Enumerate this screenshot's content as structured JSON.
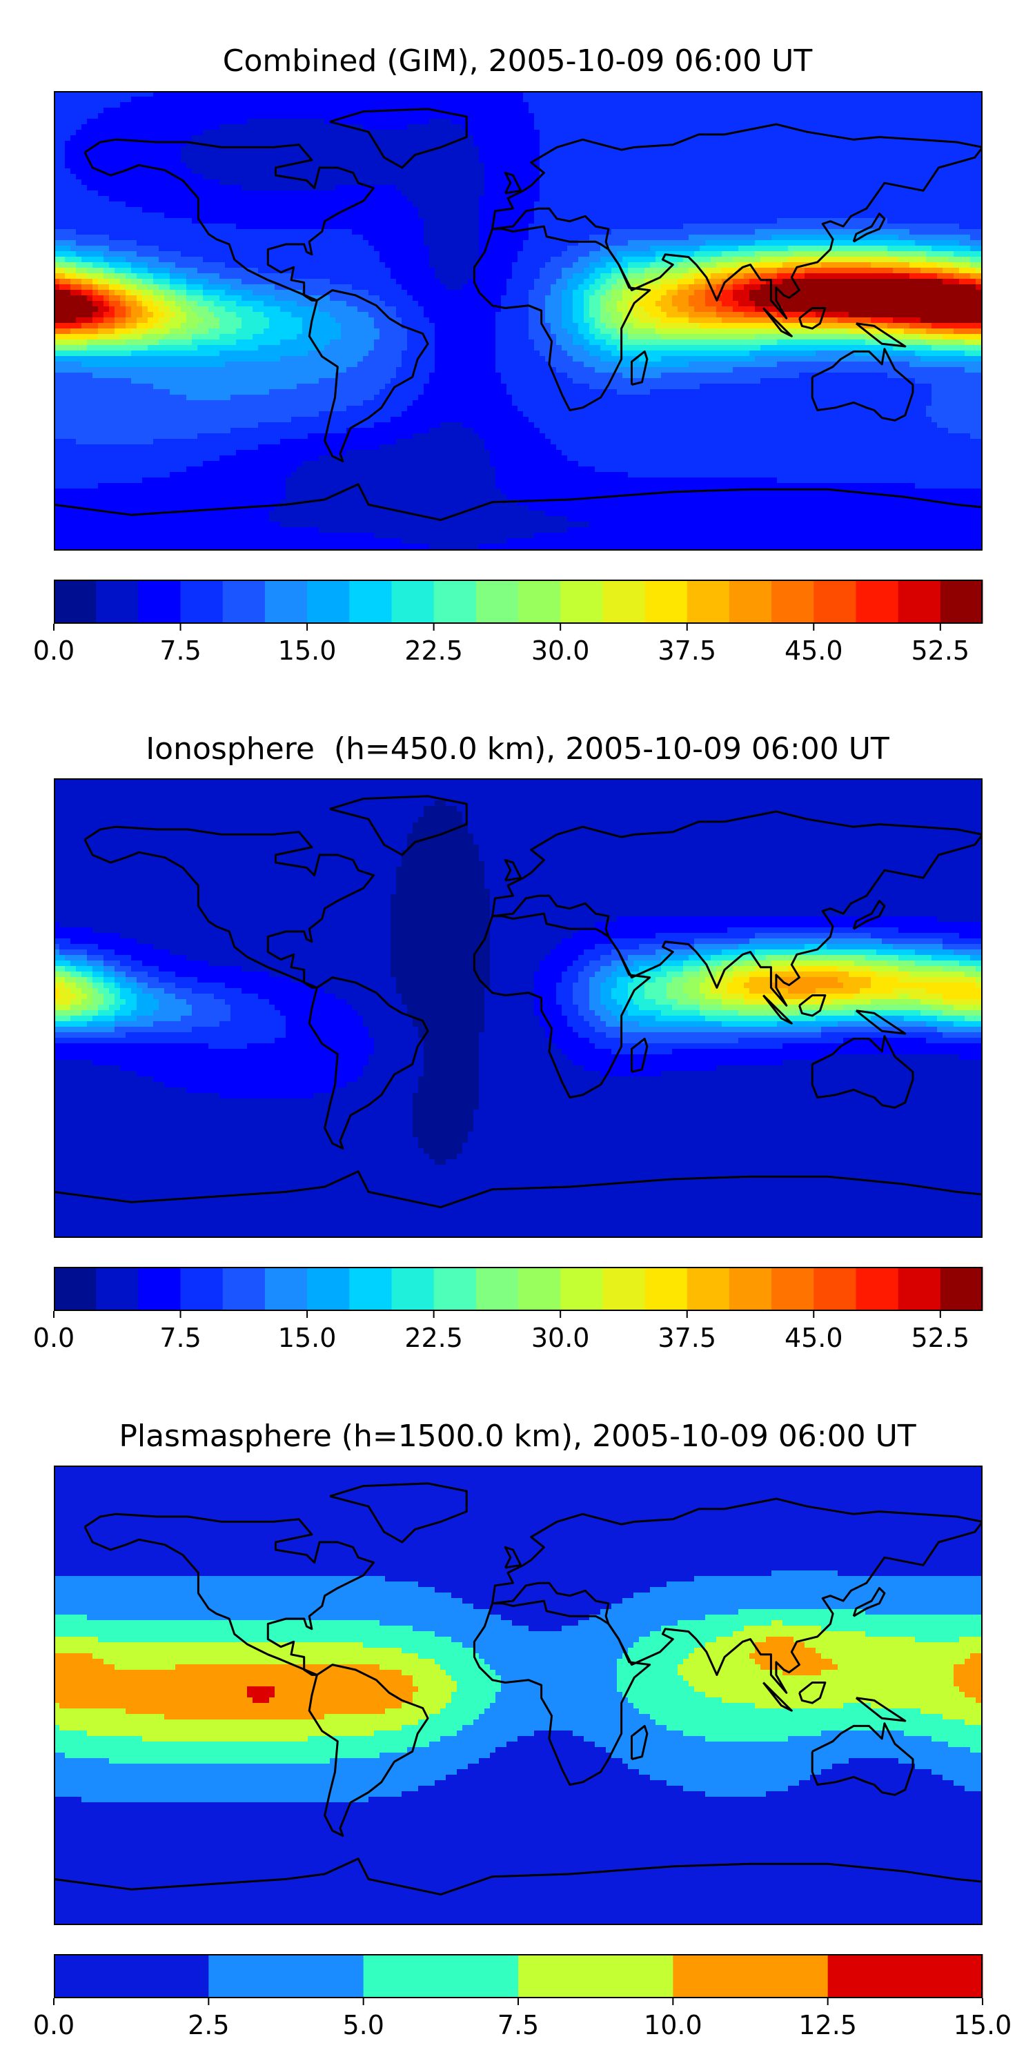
{
  "chart_data": [
    {
      "type": "heatmap",
      "title": "Combined (GIM), 2005-10-09 06:00 UT",
      "colorbar": {
        "levels": [
          0.0,
          2.5,
          5.0,
          7.5,
          10.0,
          12.5,
          15.0,
          17.5,
          20.0,
          22.5,
          25.0,
          27.5,
          30.0,
          32.5,
          35.0,
          37.5,
          40.0,
          42.5,
          45.0,
          47.5,
          50.0,
          52.5,
          55.0
        ],
        "ticks": [
          "0.0",
          "7.5",
          "15.0",
          "22.5",
          "30.0",
          "37.5",
          "45.0",
          "52.5"
        ],
        "colors": [
          "#000e91",
          "#0012c8",
          "#0000ff",
          "#0a30ff",
          "#1a55ff",
          "#1a8cff",
          "#00aaff",
          "#00d2ff",
          "#1ff0dc",
          "#4dffb8",
          "#80ff80",
          "#99ff5c",
          "#c3ff33",
          "#e6f21a",
          "#ffe600",
          "#ffbb00",
          "#ff9900",
          "#ff7300",
          "#ff4d00",
          "#ff1a00",
          "#d90000",
          "#910000"
        ]
      },
      "field": {
        "background": 8,
        "blobs": [
          {
            "lon": 125,
            "lat": 12,
            "slon": 42,
            "slat": 11,
            "amp": 45
          },
          {
            "lon": 120,
            "lat": 5,
            "slon": 22,
            "slat": 6,
            "amp": 4
          },
          {
            "lon": 70,
            "lat": 3,
            "slon": 28,
            "slat": 13,
            "amp": 18
          },
          {
            "lon": 40,
            "lat": 3,
            "slon": 16,
            "slat": 16,
            "amp": 8
          },
          {
            "lon": -180,
            "lat": 5,
            "slon": 30,
            "slat": 10,
            "amp": 30
          },
          {
            "lon": -140,
            "lat": 0,
            "slon": 45,
            "slat": 9,
            "amp": 12
          },
          {
            "lon": -95,
            "lat": -12,
            "slon": 55,
            "slat": 16,
            "amp": 5
          },
          {
            "lon": -140,
            "lat": -38,
            "slon": 60,
            "slat": 12,
            "amp": 3
          },
          {
            "lon": -25,
            "lat": 10,
            "slon": 16,
            "slat": 60,
            "amp": -4
          },
          {
            "lon": -90,
            "lat": 65,
            "slon": 40,
            "slat": 14,
            "amp": -5
          },
          {
            "lon": -65,
            "lat": -55,
            "slon": 40,
            "slat": 12,
            "amp": -4
          },
          {
            "lon": 0,
            "lat": -80,
            "slon": 180,
            "slat": 10,
            "amp": -3
          }
        ]
      }
    },
    {
      "type": "heatmap",
      "title": "Ionosphere  (h=450.0 km), 2005-10-09 06:00 UT",
      "colorbar": {
        "levels": [
          0.0,
          2.5,
          5.0,
          7.5,
          10.0,
          12.5,
          15.0,
          17.5,
          20.0,
          22.5,
          25.0,
          27.5,
          30.0,
          32.5,
          35.0,
          37.5,
          40.0,
          42.5,
          45.0,
          47.5,
          50.0,
          52.5,
          55.0
        ],
        "ticks": [
          "0.0",
          "7.5",
          "15.0",
          "22.5",
          "30.0",
          "37.5",
          "45.0",
          "52.5"
        ],
        "colors": [
          "#000e91",
          "#0012c8",
          "#0000ff",
          "#0a30ff",
          "#1a55ff",
          "#1a8cff",
          "#00aaff",
          "#00d2ff",
          "#1ff0dc",
          "#4dffb8",
          "#80ff80",
          "#99ff5c",
          "#c3ff33",
          "#e6f21a",
          "#ffe600",
          "#ffbb00",
          "#ff9900",
          "#ff7300",
          "#ff4d00",
          "#ff1a00",
          "#d90000",
          "#910000"
        ]
      },
      "field": {
        "background": 4,
        "blobs": [
          {
            "lon": 122,
            "lat": 10,
            "slon": 40,
            "slat": 10,
            "amp": 34
          },
          {
            "lon": 75,
            "lat": 4,
            "slon": 28,
            "slat": 12,
            "amp": 12
          },
          {
            "lon": 40,
            "lat": 3,
            "slon": 15,
            "slat": 15,
            "amp": 6
          },
          {
            "lon": -180,
            "lat": 5,
            "slon": 18,
            "slat": 9,
            "amp": 18
          },
          {
            "lon": -145,
            "lat": 0,
            "slon": 30,
            "slat": 8,
            "amp": 8
          },
          {
            "lon": -95,
            "lat": -15,
            "slon": 40,
            "slat": 14,
            "amp": 3
          },
          {
            "lon": -30,
            "lat": 10,
            "slon": 18,
            "slat": 60,
            "amp": -3
          }
        ]
      }
    },
    {
      "type": "heatmap",
      "title": "Plasmasphere (h=1500.0 km), 2005-10-09 06:00 UT",
      "colorbar": {
        "levels": [
          0.0,
          2.5,
          5.0,
          7.5,
          10.0,
          12.5,
          15.0
        ],
        "ticks": [
          "0.0",
          "2.5",
          "5.0",
          "7.5",
          "10.0",
          "12.5",
          "15.0"
        ],
        "colors": [
          "#0a1adc",
          "#1a8cff",
          "#33ffc0",
          "#c3ff33",
          "#ff9900",
          "#dd0000"
        ]
      },
      "field": {
        "background": 1.5,
        "blobs": [
          {
            "lon": 0,
            "lat": 3,
            "slon": 400,
            "slat": 24,
            "amp": 5.5
          },
          {
            "lon": -125,
            "lat": 0,
            "slon": 55,
            "slat": 16,
            "amp": 4.5
          },
          {
            "lon": -50,
            "lat": 3,
            "slon": 30,
            "slat": 12,
            "amp": 2.5
          },
          {
            "lon": -175,
            "lat": 10,
            "slon": 10,
            "slat": 9,
            "amp": 3
          },
          {
            "lon": -100,
            "lat": 0,
            "slon": 7,
            "slat": 5,
            "amp": 1.5
          },
          {
            "lon": -50,
            "lat": 2,
            "slon": 6,
            "slat": 5,
            "amp": 1.5
          },
          {
            "lon": 110,
            "lat": 15,
            "slon": 40,
            "slat": 12,
            "amp": 3.5
          },
          {
            "lon": 100,
            "lat": 22,
            "slon": 10,
            "slat": 6,
            "amp": 2
          },
          {
            "lon": 10,
            "lat": 0,
            "slon": 30,
            "slat": 30,
            "amp": -4
          },
          {
            "lon": 140,
            "lat": -25,
            "slon": 22,
            "slat": 14,
            "amp": -2
          }
        ]
      }
    }
  ],
  "coastline_color": "#000000"
}
